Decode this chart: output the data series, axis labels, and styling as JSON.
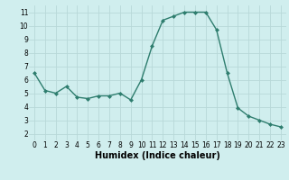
{
  "x": [
    0,
    1,
    2,
    3,
    4,
    5,
    6,
    7,
    8,
    9,
    10,
    11,
    12,
    13,
    14,
    15,
    16,
    17,
    18,
    19,
    20,
    21,
    22,
    23
  ],
  "y": [
    6.5,
    5.2,
    5.0,
    5.5,
    4.7,
    4.6,
    4.8,
    4.8,
    5.0,
    4.5,
    6.0,
    8.5,
    10.4,
    10.7,
    11.0,
    11.0,
    11.0,
    9.7,
    6.5,
    3.9,
    3.3,
    3.0,
    2.7,
    2.5
  ],
  "line_color": "#2e7d6e",
  "marker": "D",
  "marker_size": 2.0,
  "bg_color": "#d0eeee",
  "grid_color": "#b8d8d8",
  "xlabel": "Humidex (Indice chaleur)",
  "xlim": [
    -0.5,
    23.5
  ],
  "ylim": [
    1.5,
    11.5
  ],
  "xticks": [
    0,
    1,
    2,
    3,
    4,
    5,
    6,
    7,
    8,
    9,
    10,
    11,
    12,
    13,
    14,
    15,
    16,
    17,
    18,
    19,
    20,
    21,
    22,
    23
  ],
  "yticks": [
    2,
    3,
    4,
    5,
    6,
    7,
    8,
    9,
    10,
    11
  ],
  "tick_fontsize": 5.5,
  "xlabel_fontsize": 7.0,
  "xlabel_fontweight": "bold",
  "linewidth": 1.0
}
